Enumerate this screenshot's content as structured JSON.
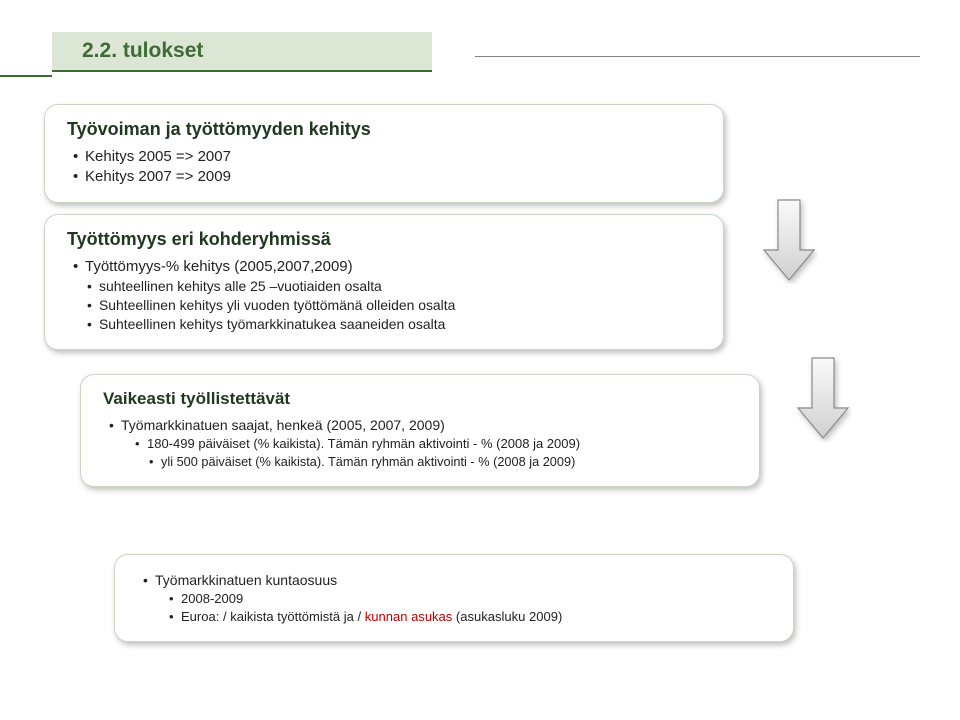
{
  "title": "2.2. tulokset",
  "card1": {
    "heading": "Työvoiman ja työttömyyden kehitys",
    "items": [
      "Kehitys 2005 => 2007",
      "Kehitys 2007 => 2009"
    ]
  },
  "card2": {
    "heading": "Työttömyys eri kohderyhmissä",
    "items": [
      "Työttömyys-% kehitys (2005,2007,2009)",
      "suhteellinen kehitys alle 25 –vuotiaiden osalta",
      "Suhteellinen kehitys yli vuoden työttömänä olleiden osalta",
      "Suhteellinen kehitys työmarkkinatukea saaneiden osalta"
    ]
  },
  "card3": {
    "heading": "Vaikeasti työllistettävät",
    "outer": "Työmarkkinatuen saajat, henkeä (2005, 2007, 2009)",
    "sub1a": "180-499 päiväiset (% kaikista). Tämän ryhmän aktivointi - % (2008 ja 2009)",
    "sub1b": "yli 500 päiväiset (% kaikista). Tämän ryhmän aktivointi - % (2008 ja 2009)"
  },
  "card4": {
    "line1": "Työmarkkinatuen kuntaosuus",
    "sub1": "2008-2009",
    "sub2_pre": "Euroa: / kaikista työttömistä ja / ",
    "sub2_red": "kunnan asukas",
    "sub2_post": " (asukasluku 2009)"
  },
  "arrow": {
    "fill_top": "#fafafa",
    "fill_bottom": "#d0d0d0",
    "border": "#8a8a8a",
    "shadow": "rgba(0,0,0,0.25)"
  }
}
